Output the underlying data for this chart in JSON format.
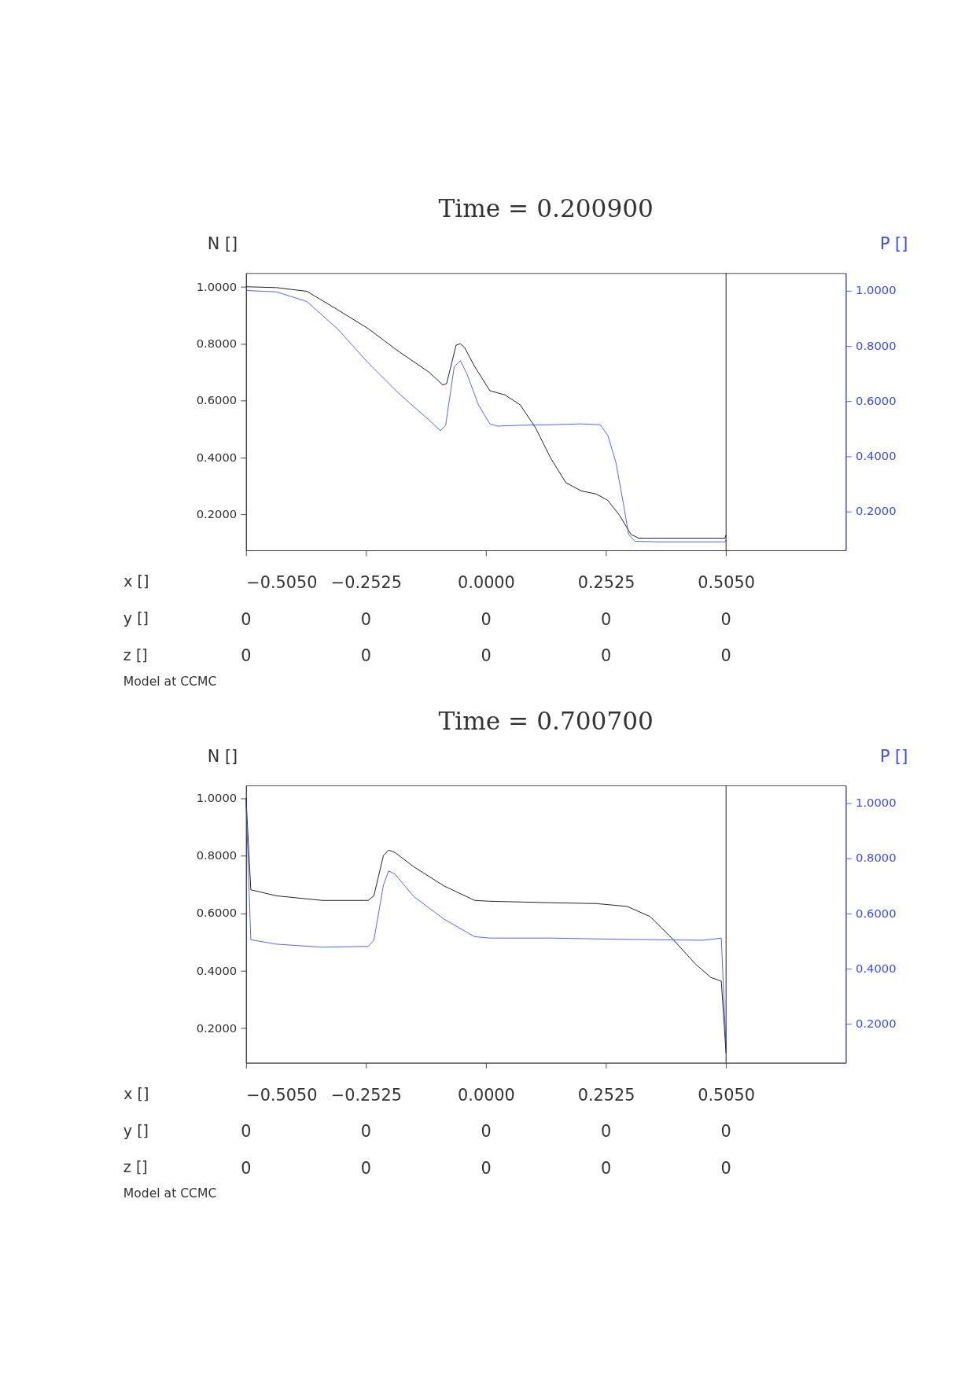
{
  "chart_data": [
    {
      "type": "line",
      "title": "Time = 0.200900",
      "xlabel": "x []",
      "ylabel": "N []",
      "y2label": "P []",
      "grid": false,
      "xlim": [
        -0.505,
        0.757
      ],
      "xticks": [
        {
          "value": -0.505,
          "label": "−0.5050"
        },
        {
          "value": -0.2525,
          "label": "−0.2525"
        },
        {
          "value": 0,
          "label": "0.0000"
        },
        {
          "value": 0.2525,
          "label": "0.2525"
        },
        {
          "value": 0.505,
          "label": "0.5050"
        }
      ],
      "ylim": [
        0.074,
        1.048
      ],
      "yticks": [
        {
          "value": 0.2,
          "label": "0.2000"
        },
        {
          "value": 0.4,
          "label": "0.4000"
        },
        {
          "value": 0.6,
          "label": "0.6000"
        },
        {
          "value": 0.8,
          "label": "0.8000"
        },
        {
          "value": 1.0,
          "label": "1.0000"
        }
      ],
      "y2lim": [
        0.059,
        1.063
      ],
      "y2ticks": [
        {
          "value": 0.2,
          "label": "0.2000"
        },
        {
          "value": 0.4,
          "label": "0.4000"
        },
        {
          "value": 0.6,
          "label": "0.6000"
        },
        {
          "value": 0.8,
          "label": "0.8000"
        },
        {
          "value": 1.0,
          "label": "1.0000"
        }
      ],
      "ref_lines": [
        {
          "axis": "x",
          "value": 0.505,
          "color": "#000000"
        }
      ],
      "annotations": [
        "y []",
        "0",
        "0",
        "0",
        "0",
        "0",
        "z []",
        "0",
        "0",
        "0",
        "0",
        "0",
        "Model at CCMC"
      ],
      "series": [
        {
          "color": "#000000",
          "x": [
            -0.505,
            -0.441,
            -0.377,
            -0.313,
            -0.248,
            -0.184,
            -0.12,
            -0.091,
            -0.083,
            -0.063,
            -0.054,
            -0.045,
            -0.024,
            0.008,
            0.04,
            0.072,
            0.104,
            0.136,
            0.168,
            0.2,
            0.232,
            0.256,
            0.281,
            0.305,
            0.321,
            0.361,
            0.503,
            0.505
          ],
          "values": [
            1.0,
            0.997,
            0.984,
            0.92,
            0.853,
            0.773,
            0.7,
            0.655,
            0.66,
            0.795,
            0.8,
            0.786,
            0.72,
            0.635,
            0.62,
            0.585,
            0.505,
            0.398,
            0.312,
            0.283,
            0.272,
            0.25,
            0.197,
            0.13,
            0.117,
            0.117,
            0.117,
            0.128
          ]
        },
        {
          "color": "#3b4cff",
          "axis": "y2",
          "x": [
            -0.505,
            -0.441,
            -0.377,
            -0.313,
            -0.248,
            -0.184,
            -0.12,
            -0.096,
            -0.085,
            -0.067,
            -0.054,
            -0.04,
            -0.016,
            0.008,
            0.024,
            0.072,
            0.136,
            0.2,
            0.24,
            0.256,
            0.273,
            0.289,
            0.3,
            0.313,
            0.361,
            0.503,
            0.505
          ],
          "values": [
            1.0,
            0.995,
            0.96,
            0.862,
            0.738,
            0.628,
            0.531,
            0.492,
            0.512,
            0.724,
            0.746,
            0.697,
            0.586,
            0.517,
            0.509,
            0.512,
            0.514,
            0.517,
            0.514,
            0.476,
            0.379,
            0.228,
            0.117,
            0.092,
            0.09,
            0.09,
            0.098
          ]
        }
      ]
    },
    {
      "type": "line",
      "title": "Time = 0.700700",
      "xlabel": "x []",
      "ylabel": "N []",
      "y2label": "P []",
      "grid": false,
      "xlim": [
        -0.505,
        0.757
      ],
      "xticks": [
        {
          "value": -0.505,
          "label": "−0.5050"
        },
        {
          "value": -0.2525,
          "label": "−0.2525"
        },
        {
          "value": 0,
          "label": "0.0000"
        },
        {
          "value": 0.2525,
          "label": "0.2525"
        },
        {
          "value": 0.505,
          "label": "0.5050"
        }
      ],
      "ylim": [
        0.08,
        1.045
      ],
      "yticks": [
        {
          "value": 0.2,
          "label": "0.2000"
        },
        {
          "value": 0.4,
          "label": "0.4000"
        },
        {
          "value": 0.6,
          "label": "0.6000"
        },
        {
          "value": 0.8,
          "label": "0.8000"
        },
        {
          "value": 1.0,
          "label": "1.0000"
        }
      ],
      "y2lim": [
        0.06,
        1.063
      ],
      "y2ticks": [
        {
          "value": 0.2,
          "label": "0.2000"
        },
        {
          "value": 0.4,
          "label": "0.4000"
        },
        {
          "value": 0.6,
          "label": "0.6000"
        },
        {
          "value": 0.8,
          "label": "0.8000"
        },
        {
          "value": 1.0,
          "label": "1.0000"
        }
      ],
      "ref_lines": [
        {
          "axis": "x",
          "value": 0.505,
          "color": "#000000"
        }
      ],
      "annotations": [
        "y []",
        "0",
        "0",
        "0",
        "0",
        "0",
        "z []",
        "0",
        "0",
        "0",
        "0",
        "0",
        "Model at CCMC"
      ],
      "series": [
        {
          "color": "#000000",
          "x": [
            -0.505,
            -0.495,
            -0.441,
            -0.345,
            -0.248,
            -0.236,
            -0.216,
            -0.205,
            -0.192,
            -0.152,
            -0.088,
            -0.024,
            0.008,
            0.136,
            0.232,
            0.297,
            0.345,
            0.393,
            0.441,
            0.473,
            0.495,
            0.505
          ],
          "values": [
            1.0,
            0.682,
            0.661,
            0.645,
            0.645,
            0.661,
            0.801,
            0.82,
            0.812,
            0.762,
            0.695,
            0.645,
            0.642,
            0.637,
            0.634,
            0.624,
            0.589,
            0.51,
            0.423,
            0.377,
            0.364,
            0.113
          ]
        },
        {
          "color": "#3b4cff",
          "axis": "y2",
          "x": [
            -0.505,
            -0.495,
            -0.441,
            -0.345,
            -0.248,
            -0.236,
            -0.216,
            -0.205,
            -0.192,
            -0.152,
            -0.088,
            -0.024,
            0.008,
            0.136,
            0.232,
            0.361,
            0.457,
            0.495,
            0.505
          ],
          "values": [
            1.0,
            0.505,
            0.489,
            0.478,
            0.481,
            0.503,
            0.702,
            0.754,
            0.743,
            0.661,
            0.579,
            0.516,
            0.511,
            0.511,
            0.508,
            0.505,
            0.503,
            0.511,
            0.115
          ]
        }
      ]
    }
  ]
}
